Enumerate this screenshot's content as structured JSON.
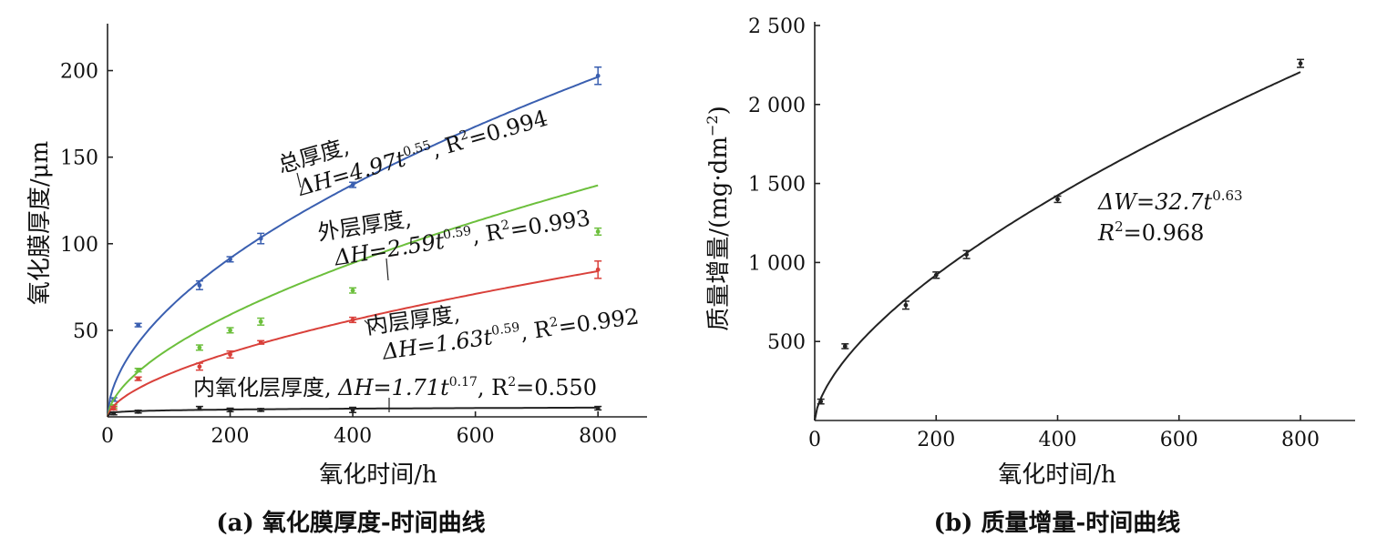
{
  "chart_data": [
    {
      "type": "line",
      "caption": "(a) 氧化膜厚度-时间曲线",
      "xlabel": "氧化时间/h",
      "ylabel": "氧化膜厚度/μm",
      "xlim": [
        0,
        880
      ],
      "ylim": [
        0,
        225
      ],
      "xticks": [
        "0",
        "200",
        "400",
        "600",
        "800"
      ],
      "yticks": [
        "50",
        "100",
        "150",
        "200"
      ],
      "legend": "none",
      "grid": false,
      "series": [
        {
          "name": "总厚度",
          "color": "#3a5fb0",
          "fit": {
            "a": 4.97,
            "b": 0.55
          },
          "x": [
            10,
            50,
            150,
            200,
            250,
            400,
            800
          ],
          "y": [
            10,
            53,
            76,
            91,
            103,
            134,
            197
          ],
          "err": [
            1,
            1,
            2.5,
            1.5,
            3,
            1.5,
            5
          ],
          "label": {
            "name": "总厚度,",
            "prefix": "ΔH=4.97t",
            "exp": "0.55",
            "mid": ", R",
            "r2exp": "2",
            "suffix": "=0.994"
          }
        },
        {
          "name": "外层厚度",
          "color": "#6cbf3c",
          "fit": {
            "a": 2.59,
            "b": 0.59
          },
          "x": [
            10,
            50,
            150,
            200,
            250,
            400,
            800
          ],
          "y": [
            6,
            27,
            40,
            50,
            55,
            73,
            107
          ],
          "err": [
            1,
            1,
            1.5,
            1.5,
            2,
            1.5,
            2
          ],
          "label": {
            "name": "外层厚度,",
            "prefix": "ΔH=2.59t",
            "exp": "0.59",
            "mid": ", R",
            "r2exp": "2",
            "suffix": "=0.993"
          }
        },
        {
          "name": "内层厚度",
          "color": "#d9403a",
          "fit": {
            "a": 1.63,
            "b": 0.59
          },
          "x": [
            10,
            50,
            150,
            200,
            250,
            400,
            800
          ],
          "y": [
            5,
            22,
            29,
            36,
            43,
            56,
            85
          ],
          "err": [
            1,
            1,
            2,
            2,
            1,
            1.5,
            5
          ],
          "label": {
            "name": "内层厚度,",
            "prefix": "ΔH=1.63t",
            "exp": "0.59",
            "mid": ", R",
            "r2exp": "2",
            "suffix": "=0.992"
          }
        },
        {
          "name": "内氧化层厚度",
          "color": "#222222",
          "fit": {
            "a": 1.71,
            "b": 0.17
          },
          "x": [
            10,
            50,
            150,
            200,
            250,
            400,
            800
          ],
          "y": [
            2,
            3,
            5,
            4,
            4,
            4,
            5
          ],
          "err": [
            0.8,
            0.8,
            1,
            1,
            0.8,
            1.5,
            1
          ],
          "label": {
            "name": "内氧化层厚度,",
            "prefix": "ΔH=1.71t",
            "exp": "0.17",
            "mid": ", R",
            "r2exp": "2",
            "suffix": "=0.550"
          }
        }
      ]
    },
    {
      "type": "line",
      "caption": "(b) 质量增量-时间曲线",
      "xlabel": "氧化时间/h",
      "ylabel": "质量增量/(mg·dm",
      "ylabel_sup": "−2",
      "ylabel_end": ")",
      "xlim": [
        0,
        890
      ],
      "ylim": [
        0,
        2500
      ],
      "xticks": [
        "0",
        "200",
        "400",
        "600",
        "800"
      ],
      "yticks": [
        "500",
        "1 000",
        "1 500",
        "2 000",
        "2 500"
      ],
      "legend": "none",
      "grid": false,
      "series": [
        {
          "color": "#222222",
          "fit": {
            "a": 32.7,
            "b": 0.63
          },
          "x": [
            10,
            50,
            150,
            200,
            250,
            400,
            800
          ],
          "y": [
            120,
            470,
            730,
            920,
            1050,
            1400,
            2260
          ],
          "err": [
            15,
            15,
            25,
            20,
            25,
            20,
            25
          ]
        }
      ],
      "annotation": {
        "line1_prefix": "ΔW=32.7t",
        "line1_exp": "0.63",
        "line2_prefix": "R",
        "line2_exp": "2",
        "line2_suffix": "=0.968"
      }
    }
  ]
}
